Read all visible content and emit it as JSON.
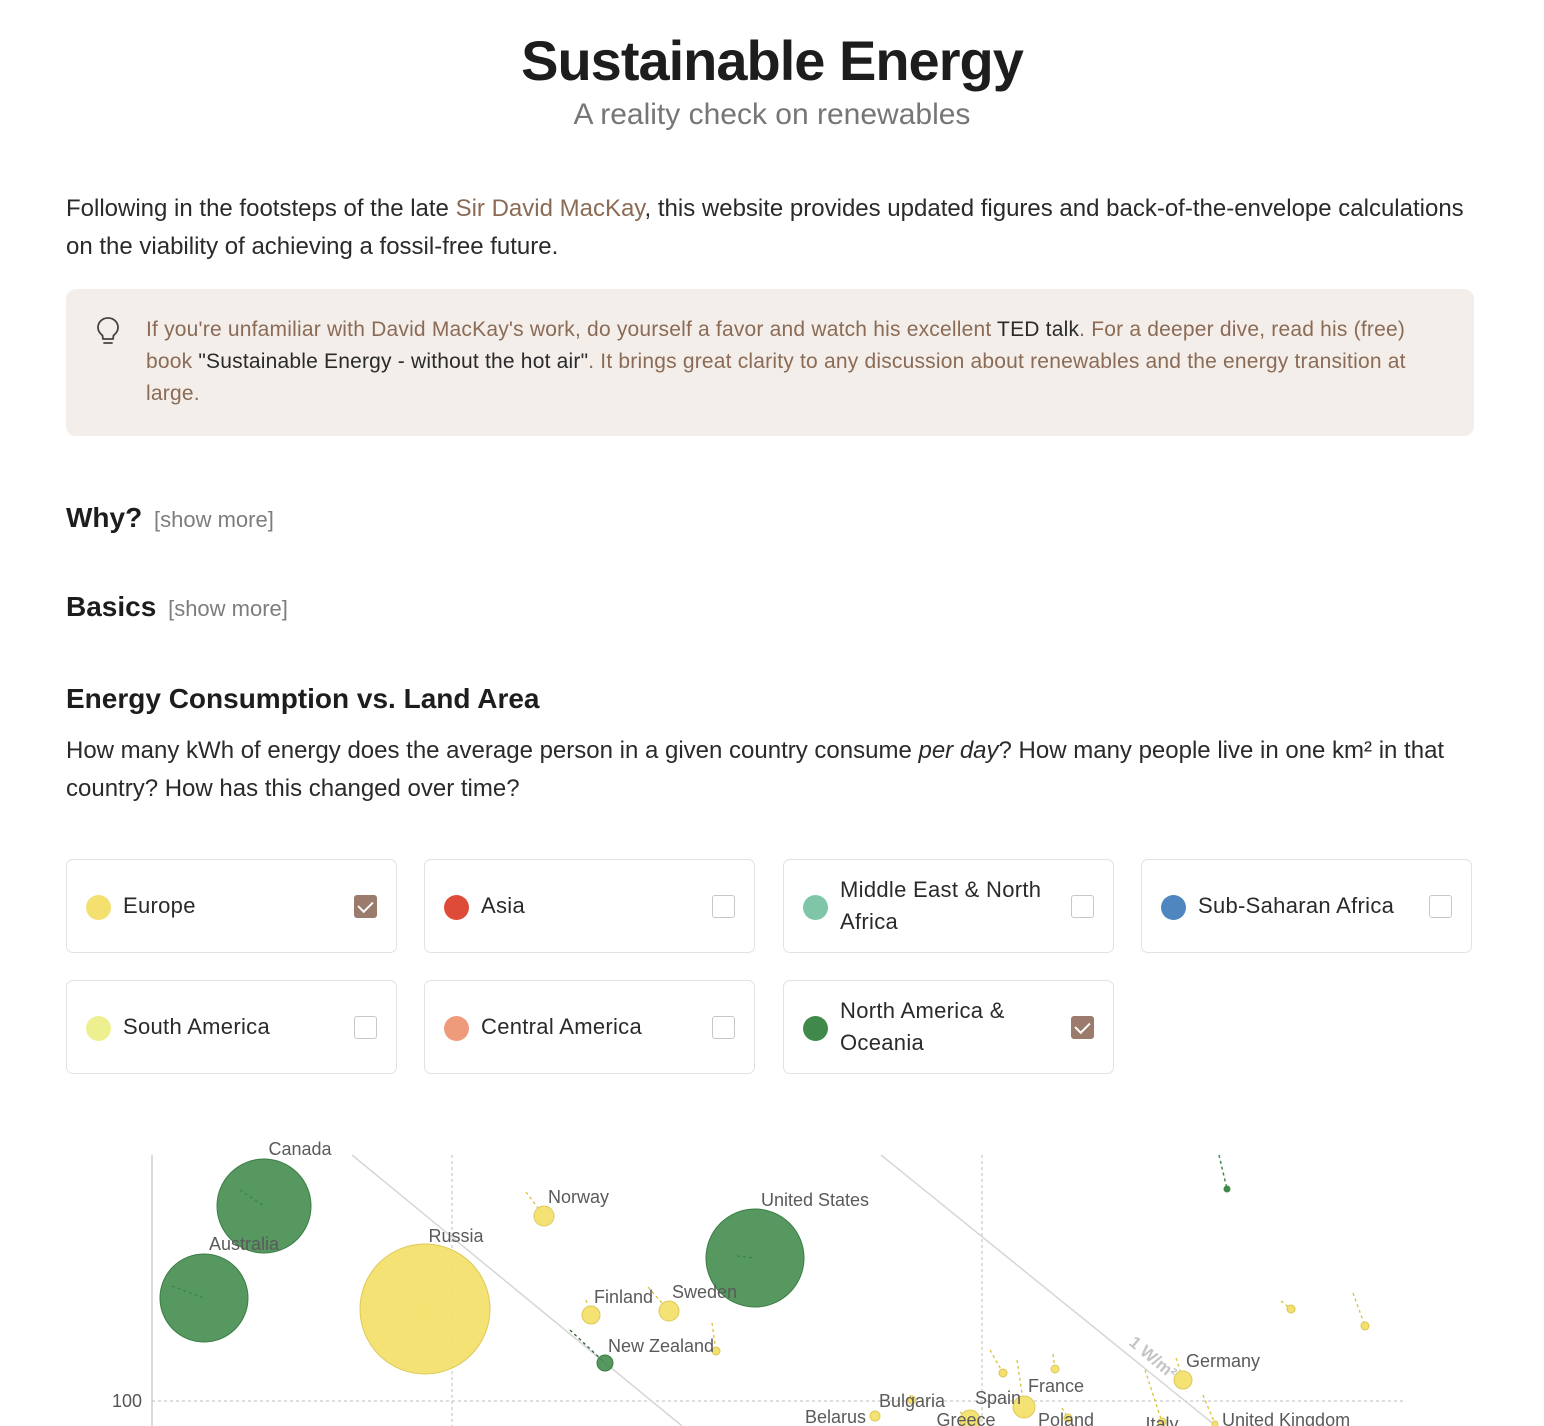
{
  "header": {
    "title": "Sustainable Energy",
    "subtitle": "A reality check on renewables"
  },
  "intro": {
    "before_link": "Following in the footsteps of the late ",
    "link": "Sir David MacKay",
    "after_link": ", this website provides updated figures and back-of-the-envelope calculations on the viability of achieving a fossil-free future."
  },
  "callout": {
    "icon": "lightbulb-icon",
    "part1": "If you're unfamiliar with David MacKay's work, do yourself a favor and watch his excellent ",
    "link1": "TED talk",
    "part2": ". For a deeper dive, read his (free) book ",
    "link2": "\"Sustainable Energy - without the hot air\"",
    "part3": ". It brings great clarity to any discussion about renewables and the energy transition at large."
  },
  "sections": {
    "why": {
      "title": "Why?",
      "toggle": "[show more]"
    },
    "basics": {
      "title": "Basics",
      "toggle": "[show more]"
    }
  },
  "consumption": {
    "heading": "Energy Consumption vs. Land Area",
    "question_part1": "How many kWh of energy does the average person in a given country consume ",
    "question_em": "per day",
    "question_part2": "? How many people live in one km² in that country? How has this changed over time?"
  },
  "filters": [
    {
      "label": "Europe",
      "color": "#f3e06e",
      "checked": true
    },
    {
      "label": "Asia",
      "color": "#de4b39",
      "checked": false
    },
    {
      "label": "Middle East & North Africa",
      "color": "#7fc6a8",
      "checked": false
    },
    {
      "label": "Sub-Saharan Africa",
      "color": "#4f86bf",
      "checked": false
    },
    {
      "label": "South America",
      "color": "#eef08f",
      "checked": false
    },
    {
      "label": "Central America",
      "color": "#ee9b7c",
      "checked": false
    },
    {
      "label": "North America & Oceania",
      "color": "#3f8a4a",
      "checked": true
    }
  ],
  "chart_data": {
    "type": "scatter",
    "scale": "log",
    "y_tick_label": "100",
    "reference_line_label": "1 W/m²",
    "colors": {
      "Europe": "#f3e06e",
      "North America & Oceania": "#3f8a4a"
    },
    "points": [
      {
        "label": "Canada",
        "region": "North America & Oceania"
      },
      {
        "label": "Australia",
        "region": "North America & Oceania"
      },
      {
        "label": "Norway",
        "region": "Europe"
      },
      {
        "label": "Russia",
        "region": "Europe"
      },
      {
        "label": "United States",
        "region": "North America & Oceania"
      },
      {
        "label": "Finland",
        "region": "Europe"
      },
      {
        "label": "Sweden",
        "region": "Europe"
      },
      {
        "label": "New Zealand",
        "region": "North America & Oceania"
      },
      {
        "label": "Germany",
        "region": "Europe"
      },
      {
        "label": "Bulgaria",
        "region": "Europe"
      },
      {
        "label": "Spain",
        "region": "Europe"
      },
      {
        "label": "France",
        "region": "Europe"
      },
      {
        "label": "Belarus",
        "region": "Europe"
      },
      {
        "label": "Greece",
        "region": "Europe"
      },
      {
        "label": "Poland",
        "region": "Europe"
      },
      {
        "label": "Italy",
        "region": "Europe"
      },
      {
        "label": "United Kingdom",
        "region": "Europe"
      }
    ]
  }
}
